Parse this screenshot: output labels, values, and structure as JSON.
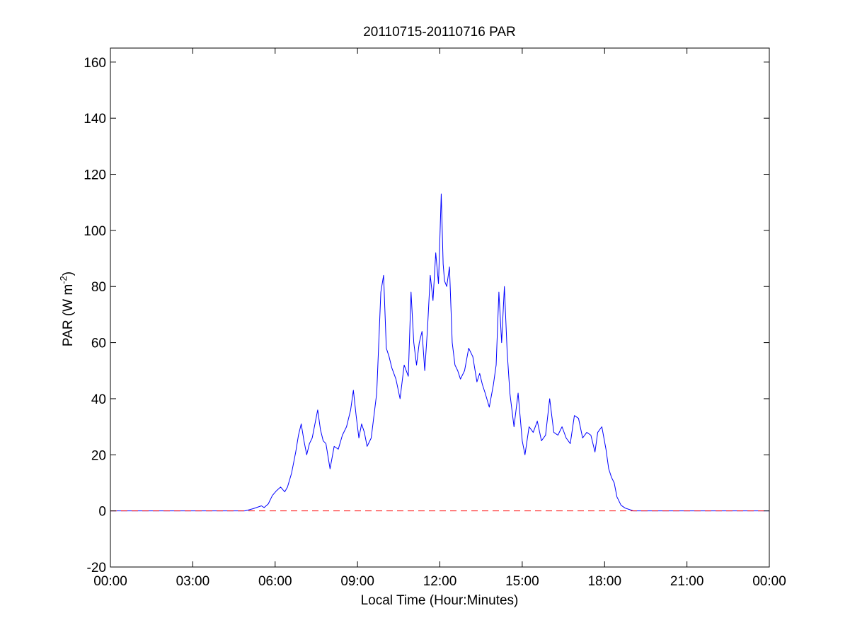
{
  "chart_data": {
    "type": "line",
    "title": "20110715-20110716 PAR",
    "xlabel": "Local Time (Hour:Minutes)",
    "ylabel": {
      "prefix": "PAR (W m",
      "superscript": "-2",
      "suffix": ")"
    },
    "x_unit": "hours",
    "xlim": [
      0,
      24
    ],
    "ylim": [
      -20,
      165
    ],
    "xticks": [
      0,
      3,
      6,
      9,
      12,
      15,
      18,
      21,
      24
    ],
    "xtick_labels": [
      "00:00",
      "03:00",
      "06:00",
      "09:00",
      "12:00",
      "15:00",
      "18:00",
      "21:00",
      "00:00"
    ],
    "yticks": [
      -20,
      0,
      20,
      40,
      60,
      80,
      100,
      120,
      140,
      160
    ],
    "ytick_labels": [
      "-20",
      "0",
      "20",
      "40",
      "60",
      "80",
      "100",
      "120",
      "140",
      "160"
    ],
    "grid": false,
    "series": [
      {
        "color": "#0000ff",
        "style": "solid",
        "x": [
          0,
          4.9,
          5.2,
          5.5,
          5.6,
          5.75,
          5.9,
          6.05,
          6.2,
          6.35,
          6.45,
          6.6,
          6.75,
          6.85,
          6.95,
          7.05,
          7.15,
          7.25,
          7.35,
          7.45,
          7.55,
          7.65,
          7.75,
          7.85,
          8.0,
          8.15,
          8.3,
          8.45,
          8.6,
          8.75,
          8.85,
          8.95,
          9.05,
          9.15,
          9.25,
          9.35,
          9.5,
          9.7,
          9.85,
          9.95,
          10.05,
          10.15,
          10.25,
          10.4,
          10.55,
          10.7,
          10.85,
          10.95,
          11.05,
          11.15,
          11.25,
          11.35,
          11.45,
          11.55,
          11.65,
          11.75,
          11.85,
          11.95,
          12.05,
          12.12,
          12.17,
          12.25,
          12.35,
          12.45,
          12.55,
          12.65,
          12.75,
          12.9,
          13.05,
          13.2,
          13.35,
          13.45,
          13.55,
          13.65,
          13.8,
          13.95,
          14.05,
          14.15,
          14.25,
          14.35,
          14.45,
          14.55,
          14.7,
          14.85,
          15.0,
          15.1,
          15.25,
          15.4,
          15.55,
          15.7,
          15.85,
          16.0,
          16.15,
          16.3,
          16.45,
          16.6,
          16.75,
          16.9,
          17.05,
          17.2,
          17.35,
          17.5,
          17.65,
          17.75,
          17.9,
          18.05,
          18.15,
          18.25,
          18.35,
          18.45,
          18.6,
          18.75,
          18.9,
          19.05,
          19.2,
          19.4,
          24
        ],
        "y": [
          0,
          0,
          0.8,
          1.8,
          1.2,
          2.5,
          5.5,
          7.2,
          8.5,
          6.8,
          8.5,
          13.5,
          21,
          27,
          31,
          25,
          20,
          24,
          26,
          31,
          36,
          29,
          25,
          24,
          15,
          23,
          22,
          27,
          30,
          36,
          43,
          34,
          26,
          31,
          28,
          23,
          26,
          42,
          78,
          84,
          58,
          55,
          51,
          47,
          40,
          52,
          48,
          78,
          60,
          52,
          60,
          64,
          50,
          65,
          84,
          75,
          92,
          81,
          113,
          88,
          82,
          80,
          87,
          60,
          52,
          50,
          47,
          50,
          58,
          55,
          46,
          49,
          45,
          42,
          37,
          45,
          52,
          78,
          60,
          80,
          57,
          42,
          30,
          42,
          25,
          20,
          30,
          28,
          32,
          25,
          27,
          40,
          28,
          27,
          30,
          26,
          24,
          34,
          33,
          26,
          28,
          27,
          21,
          28,
          30,
          22,
          15,
          12,
          10,
          5,
          2,
          1,
          0.5,
          0,
          0,
          0,
          0
        ]
      },
      {
        "color": "#ff0000",
        "style": "dashed",
        "x": [
          0,
          24
        ],
        "y": [
          0,
          0
        ]
      }
    ]
  }
}
